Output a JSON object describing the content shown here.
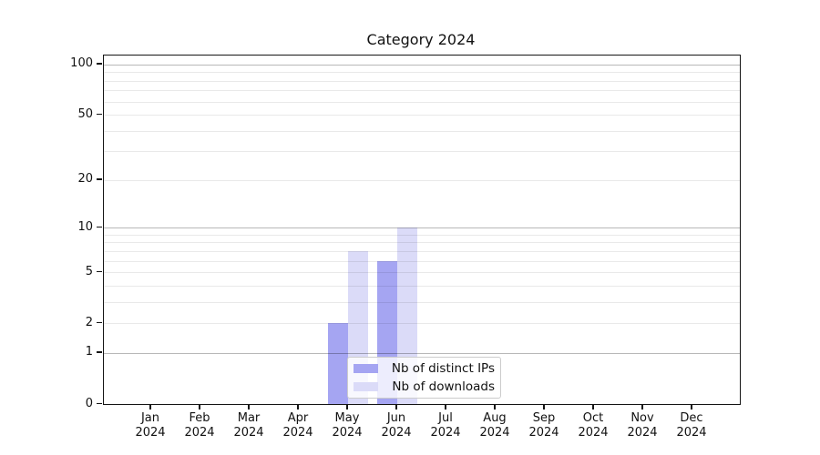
{
  "chart_data": {
    "type": "bar",
    "title": "Category 2024",
    "categories": [
      "Jan",
      "Feb",
      "Mar",
      "Apr",
      "May",
      "Jun",
      "Jul",
      "Aug",
      "Sep",
      "Oct",
      "Nov",
      "Dec"
    ],
    "category_year": "2024",
    "series": [
      {
        "name": "Nb of distinct IPs",
        "color": "#a5a5f2",
        "values": [
          0,
          0,
          0,
          0,
          2,
          6,
          0,
          0,
          0,
          0,
          0,
          0
        ]
      },
      {
        "name": "Nb of downloads",
        "color": "#dbdbf8",
        "values": [
          0,
          0,
          0,
          0,
          7,
          10,
          0,
          0,
          0,
          0,
          0,
          0
        ]
      }
    ],
    "y_scale": "log1p",
    "ylim": [
      0,
      113.3
    ],
    "y_ticks_labeled": [
      0,
      1,
      2,
      5,
      10,
      20,
      50,
      100
    ],
    "y_gridlines_major": [
      1,
      10,
      100
    ],
    "y_gridlines_minor": [
      2,
      3,
      4,
      5,
      6,
      7,
      8,
      9,
      20,
      30,
      40,
      50,
      60,
      70,
      80,
      90
    ],
    "grid": true,
    "legend_position": "inside-bottom-center"
  }
}
